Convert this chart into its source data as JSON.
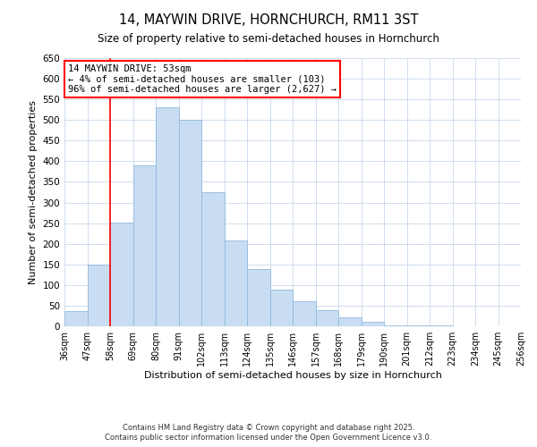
{
  "title": "14, MAYWIN DRIVE, HORNCHURCH, RM11 3ST",
  "subtitle": "Size of property relative to semi-detached houses in Hornchurch",
  "xlabel": "Distribution of semi-detached houses by size in Hornchurch",
  "ylabel": "Number of semi-detached properties",
  "bin_labels": [
    "36sqm",
    "47sqm",
    "58sqm",
    "69sqm",
    "80sqm",
    "91sqm",
    "102sqm",
    "113sqm",
    "124sqm",
    "135sqm",
    "146sqm",
    "157sqm",
    "168sqm",
    "179sqm",
    "190sqm",
    "201sqm",
    "212sqm",
    "223sqm",
    "234sqm",
    "245sqm",
    "256sqm"
  ],
  "bar_values": [
    37,
    150,
    252,
    390,
    530,
    500,
    325,
    207,
    138,
    88,
    60,
    39,
    21,
    11,
    3,
    2,
    2,
    1,
    1,
    0,
    1
  ],
  "bar_color": "#c9ddf2",
  "bar_edgecolor": "#90b8dc",
  "ylim": [
    0,
    650
  ],
  "yticks": [
    0,
    50,
    100,
    150,
    200,
    250,
    300,
    350,
    400,
    450,
    500,
    550,
    600,
    650
  ],
  "red_line_x": 2,
  "annotation_title": "14 MAYWIN DRIVE: 53sqm",
  "annotation_line1": "← 4% of semi-detached houses are smaller (103)",
  "annotation_line2": "96% of semi-detached houses are larger (2,627) →",
  "footer_line1": "Contains HM Land Registry data © Crown copyright and database right 2025.",
  "footer_line2": "Contains public sector information licensed under the Open Government Licence v3.0."
}
